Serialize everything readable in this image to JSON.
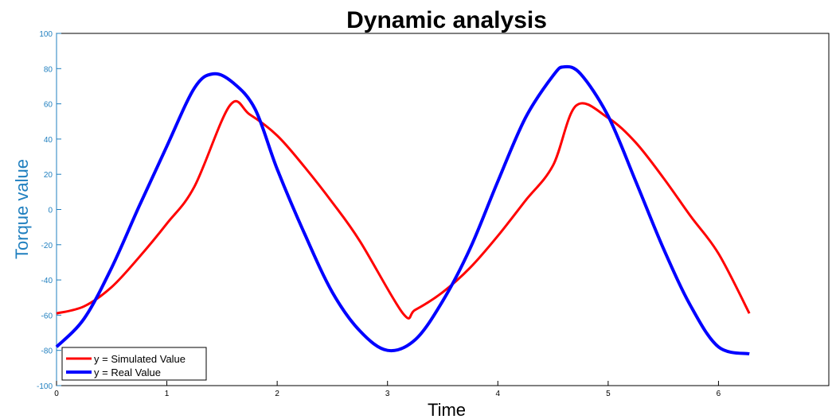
{
  "chart_data": {
    "type": "line",
    "title": "Dynamic analysis",
    "xlabel": "Time",
    "ylabel": "Torque value",
    "xlim": [
      0,
      7
    ],
    "ylim": [
      -100,
      100
    ],
    "xticks": [
      0,
      1,
      2,
      3,
      4,
      5,
      6
    ],
    "yticks": [
      -100,
      -80,
      -60,
      -40,
      -20,
      0,
      20,
      40,
      60,
      80,
      100
    ],
    "grid": false,
    "legend_position": "bottom-left",
    "colors": {
      "axes": "#000000",
      "yaxis": "#1f7fbf",
      "simulated": "#ff0000",
      "real": "#0000ff"
    },
    "series": [
      {
        "name": "y = Simulated Value",
        "color": "#ff0000",
        "x": [
          0,
          0.25,
          0.5,
          0.75,
          1.0,
          1.25,
          1.57,
          1.75,
          2.0,
          2.25,
          2.5,
          2.75,
          3.14,
          3.25,
          3.5,
          3.75,
          4.0,
          4.25,
          4.5,
          4.71,
          5.0,
          5.25,
          5.5,
          5.75,
          6.0,
          6.28
        ],
        "y": [
          -59,
          -55,
          -44,
          -27,
          -8,
          13,
          59,
          54,
          42,
          24,
          4,
          -18,
          -59,
          -57,
          -47,
          -33,
          -15,
          5,
          25,
          59,
          52,
          38,
          18,
          -4,
          -25,
          -59
        ]
      },
      {
        "name": "y = Real Value",
        "color": "#0000ff",
        "x": [
          0,
          0.25,
          0.5,
          0.75,
          1.0,
          1.25,
          1.42,
          1.6,
          1.8,
          2.0,
          2.25,
          2.5,
          2.75,
          3.0,
          3.25,
          3.5,
          3.75,
          4.0,
          4.25,
          4.5,
          4.6,
          4.75,
          5.0,
          5.25,
          5.5,
          5.75,
          6.0,
          6.28
        ],
        "y": [
          -78,
          -62,
          -33,
          2,
          36,
          69,
          77,
          72,
          57,
          23,
          -14,
          -47,
          -69,
          -80,
          -74,
          -52,
          -22,
          16,
          52,
          76,
          81,
          77,
          53,
          16,
          -22,
          -55,
          -78,
          -82
        ]
      }
    ]
  }
}
